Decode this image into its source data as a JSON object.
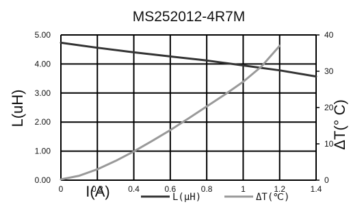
{
  "chart_data": {
    "type": "line",
    "title": "MS252012-4R7M",
    "xlabel": "I(A)",
    "ylabel_left": "L(uH)",
    "ylabel_right": "ΔT(° C)",
    "x_ticks": [
      "0",
      "0.2",
      "0.4",
      "0.6",
      "0.8",
      "1",
      "1.2",
      "1.4"
    ],
    "y_left_ticks": [
      "0.00",
      "1.00",
      "2.00",
      "3.00",
      "4.00",
      "5.00"
    ],
    "y_right_ticks": [
      "0",
      "10",
      "20",
      "30",
      "40"
    ],
    "xlim": [
      0,
      1.4
    ],
    "ylim_left": [
      0,
      5
    ],
    "ylim_right": [
      0,
      40
    ],
    "grid": true,
    "legend_position": "bottom-right",
    "series": [
      {
        "name": "L(μH)",
        "axis": "left",
        "color": "#333333",
        "x": [
          0,
          0.2,
          0.4,
          0.6,
          0.8,
          1.0,
          1.2,
          1.4
        ],
        "y": [
          4.73,
          4.56,
          4.4,
          4.26,
          4.12,
          3.95,
          3.78,
          3.57
        ]
      },
      {
        "name": "ΔT(℃)",
        "axis": "right",
        "color": "#999999",
        "x": [
          0,
          0.1,
          0.2,
          0.3,
          0.4,
          0.5,
          0.6,
          0.7,
          0.8,
          0.9,
          1.0,
          1.1,
          1.2
        ],
        "y": [
          0.2,
          1.2,
          3.0,
          5.3,
          7.9,
          10.8,
          13.8,
          17.0,
          20.3,
          23.6,
          27.1,
          31.3,
          37.0
        ]
      }
    ]
  }
}
